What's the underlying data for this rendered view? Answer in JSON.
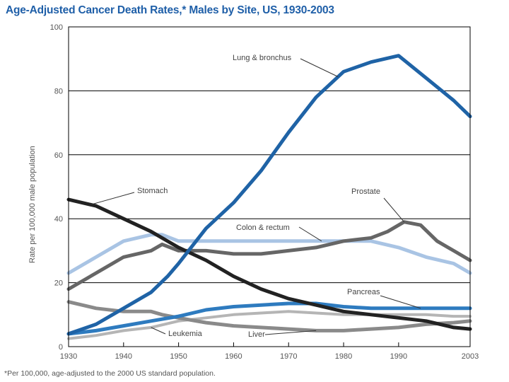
{
  "chart_data": {
    "type": "line",
    "title": "Age-Adjusted Cancer Death Rates,* Males by Site, US, 1930-2003",
    "ylabel": "Rate per 100,000 male population",
    "xlabel": "",
    "footnote": "*Per 100,000, age-adjusted to the 2000 US standard population.",
    "xlim": [
      1930,
      2003
    ],
    "ylim": [
      0,
      100
    ],
    "x_ticks": [
      1930,
      1940,
      1950,
      1960,
      1970,
      1980,
      1990,
      2003
    ],
    "y_ticks": [
      0,
      20,
      40,
      60,
      80,
      100
    ],
    "series": [
      {
        "name": "Lung & bronchus",
        "label": "Lung & bronchus",
        "color": "#1f63a6",
        "width": 5,
        "x": [
          1930,
          1935,
          1940,
          1945,
          1948,
          1950,
          1955,
          1960,
          1965,
          1970,
          1975,
          1980,
          1985,
          1990,
          1995,
          2000,
          2003
        ],
        "y": [
          4,
          7,
          12,
          17,
          22,
          26,
          37,
          45,
          55,
          67,
          78,
          86,
          89,
          91,
          84,
          77,
          72
        ]
      },
      {
        "name": "Stomach",
        "label": "Stomach",
        "color": "#222222",
        "width": 5,
        "x": [
          1930,
          1935,
          1940,
          1945,
          1950,
          1955,
          1960,
          1965,
          1970,
          1975,
          1980,
          1985,
          1990,
          1995,
          2000,
          2003
        ],
        "y": [
          46,
          44,
          40,
          36,
          31,
          27,
          22,
          18,
          15,
          13,
          11,
          10,
          9,
          8,
          6,
          5.5
        ]
      },
      {
        "name": "Prostate",
        "label": "Prostate",
        "color": "#666666",
        "width": 5,
        "x": [
          1930,
          1935,
          1940,
          1945,
          1947,
          1950,
          1955,
          1960,
          1965,
          1970,
          1975,
          1980,
          1985,
          1988,
          1991,
          1994,
          1997,
          2000,
          2003
        ],
        "y": [
          18,
          23,
          28,
          30,
          32,
          30,
          30,
          29,
          29,
          30,
          31,
          33,
          34,
          36,
          39,
          38,
          33,
          30,
          27
        ]
      },
      {
        "name": "Colon & rectum",
        "label": "Colon & rectum",
        "color": "#a9c4e4",
        "width": 5,
        "x": [
          1930,
          1935,
          1940,
          1945,
          1947,
          1950,
          1955,
          1960,
          1965,
          1970,
          1975,
          1980,
          1985,
          1990,
          1995,
          2000,
          2003
        ],
        "y": [
          23,
          28,
          33,
          35,
          35,
          33,
          33,
          33,
          33,
          33,
          33,
          33,
          33,
          31,
          28,
          26,
          23
        ]
      },
      {
        "name": "Pancreas",
        "label": "Pancreas",
        "color": "#2e7bbf",
        "width": 5,
        "x": [
          1930,
          1935,
          1940,
          1945,
          1950,
          1955,
          1960,
          1965,
          1970,
          1975,
          1980,
          1985,
          1990,
          1995,
          2000,
          2003
        ],
        "y": [
          4,
          5,
          6.5,
          8,
          9.5,
          11.5,
          12.5,
          13,
          13.5,
          13.5,
          12.5,
          12,
          12,
          12,
          12,
          12
        ]
      },
      {
        "name": "Leukemia",
        "label": "Leukemia",
        "color": "#b5b5b5",
        "width": 4,
        "x": [
          1930,
          1935,
          1940,
          1945,
          1950,
          1955,
          1960,
          1965,
          1970,
          1975,
          1980,
          1985,
          1990,
          1995,
          2000,
          2003
        ],
        "y": [
          2.5,
          3.5,
          5,
          6,
          8,
          9,
          10,
          10.5,
          11,
          10.5,
          10,
          10,
          10,
          10,
          9.5,
          9.5
        ]
      },
      {
        "name": "Liver",
        "label": "Liver",
        "color": "#8a8a8a",
        "width": 5,
        "x": [
          1930,
          1935,
          1940,
          1945,
          1947,
          1950,
          1955,
          1960,
          1965,
          1970,
          1975,
          1980,
          1985,
          1990,
          1995,
          2000,
          2003
        ],
        "y": [
          14,
          12,
          11,
          11,
          10,
          9,
          7.5,
          6.5,
          6,
          5.5,
          5,
          5,
          5.5,
          6,
          7,
          7.5,
          8
        ]
      }
    ]
  }
}
